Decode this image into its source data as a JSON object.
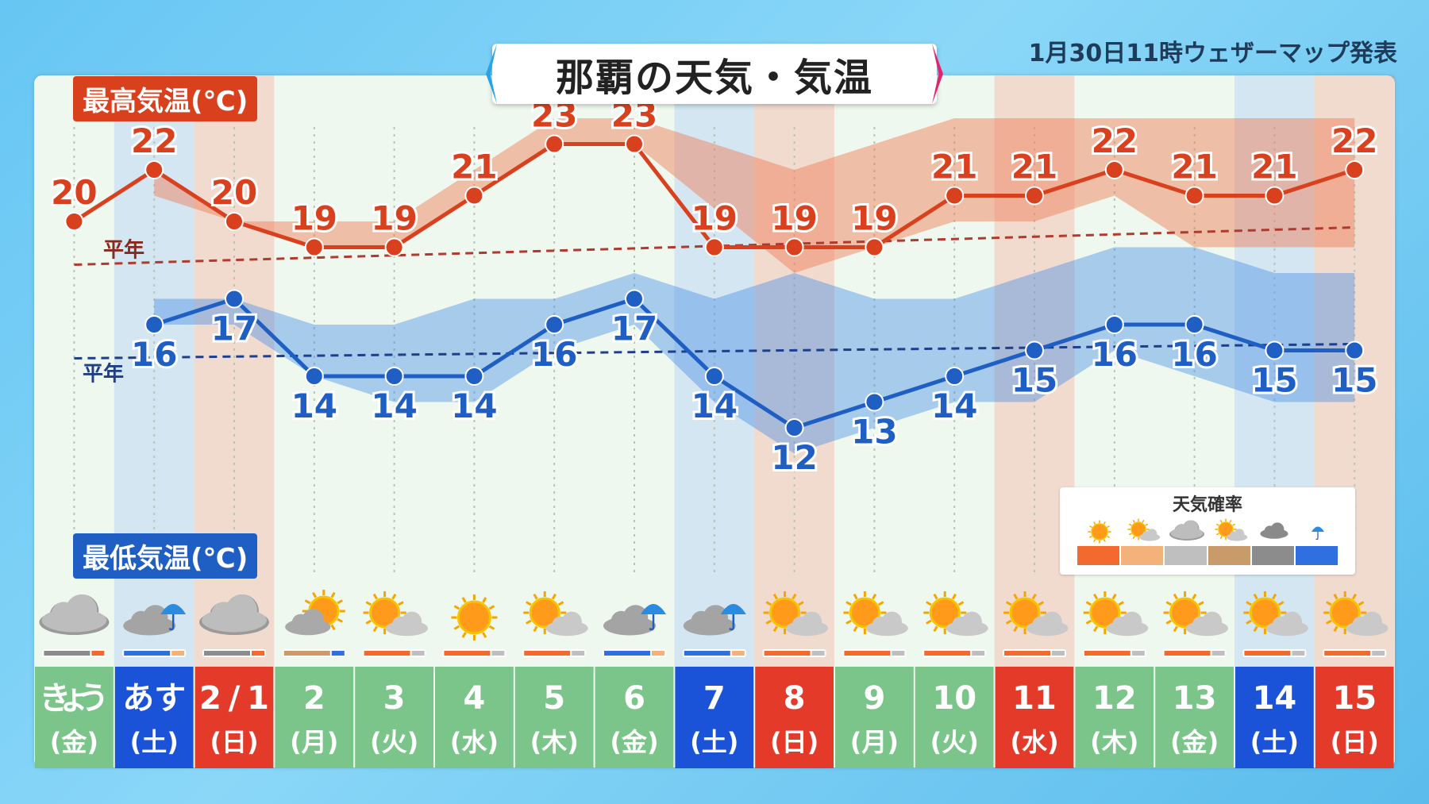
{
  "title": "那覇の天気・気温",
  "issued": "1月30日11時ウェザーマップ発表",
  "max_label": "最高気温(℃)",
  "min_label": "最低気温(℃)",
  "normal_label": "平年",
  "legend": {
    "title": "天気確率",
    "icons": [
      "sun-icon",
      "sun-cloud-icon",
      "cloud-icon",
      "sun-cloud-icon",
      "dark-cloud-icon",
      "umbrella-icon"
    ],
    "colors": [
      "#f26a2e",
      "#f3b27a",
      "#bfbfbf",
      "#c99a6a",
      "#8c8c8c",
      "#2f6fe0"
    ]
  },
  "days": [
    {
      "date": "きょう",
      "dow": "(金)",
      "type": "weekday",
      "weather": "cloud-icon"
    },
    {
      "date": "あす",
      "dow": "(土)",
      "type": "sat",
      "weather": "cloud-rain-icon"
    },
    {
      "date": "2/1",
      "dow": "(日)",
      "type": "sun",
      "weather": "cloud-icon"
    },
    {
      "date": "2",
      "dow": "(月)",
      "type": "weekday",
      "weather": "cloud-sun-icon"
    },
    {
      "date": "3",
      "dow": "(火)",
      "type": "weekday",
      "weather": "sun-cloud-icon"
    },
    {
      "date": "4",
      "dow": "(水)",
      "type": "weekday",
      "weather": "sun-icon"
    },
    {
      "date": "5",
      "dow": "(木)",
      "type": "weekday",
      "weather": "sun-cloud-icon"
    },
    {
      "date": "6",
      "dow": "(金)",
      "type": "weekday",
      "weather": "cloud-rain-icon"
    },
    {
      "date": "7",
      "dow": "(土)",
      "type": "sat",
      "weather": "cloud-rain-icon"
    },
    {
      "date": "8",
      "dow": "(日)",
      "type": "sun",
      "weather": "sun-cloud-icon"
    },
    {
      "date": "9",
      "dow": "(月)",
      "type": "weekday",
      "weather": "sun-cloud-icon"
    },
    {
      "date": "10",
      "dow": "(火)",
      "type": "weekday",
      "weather": "sun-cloud-icon"
    },
    {
      "date": "11",
      "dow": "(水)",
      "type": "holiday",
      "weather": "sun-cloud-icon"
    },
    {
      "date": "12",
      "dow": "(木)",
      "type": "weekday",
      "weather": "sun-cloud-icon"
    },
    {
      "date": "13",
      "dow": "(金)",
      "type": "weekday",
      "weather": "sun-cloud-icon"
    },
    {
      "date": "14",
      "dow": "(土)",
      "type": "sat",
      "weather": "sun-cloud-icon"
    },
    {
      "date": "15",
      "dow": "(日)",
      "type": "sun",
      "weather": "sun-cloud-icon"
    }
  ],
  "chart_data": {
    "type": "line",
    "categories": [
      "きょう",
      "あす",
      "2/1",
      "2",
      "3",
      "4",
      "5",
      "6",
      "7",
      "8",
      "9",
      "10",
      "11",
      "12",
      "13",
      "14",
      "15"
    ],
    "series": [
      {
        "name": "最高気温(℃)",
        "color": "#d9411e",
        "values": [
          20,
          22,
          20,
          19,
          19,
          21,
          23,
          23,
          19,
          19,
          19,
          21,
          21,
          22,
          21,
          21,
          22
        ],
        "range_low": [
          null,
          21,
          20,
          19,
          19,
          null,
          23,
          23,
          null,
          18,
          19,
          20,
          20,
          21,
          19,
          19,
          19
        ],
        "range_high": [
          null,
          22,
          20,
          20,
          20,
          null,
          24,
          24,
          null,
          22,
          23,
          24,
          24,
          24,
          24,
          24,
          24
        ]
      },
      {
        "name": "最低気温(℃)",
        "color": "#1f5fc4",
        "values": [
          null,
          16,
          17,
          14,
          14,
          14,
          16,
          17,
          14,
          12,
          13,
          14,
          15,
          16,
          16,
          15,
          15
        ],
        "range_low": [
          null,
          16,
          16,
          14,
          13,
          13,
          15,
          16,
          13,
          11,
          12,
          13,
          13,
          15,
          14,
          13,
          13
        ],
        "range_high": [
          null,
          17,
          17,
          16,
          16,
          17,
          17,
          18,
          17,
          18,
          17,
          17,
          18,
          19,
          19,
          18,
          18
        ]
      }
    ],
    "normal": {
      "max": 19,
      "min": 15
    },
    "ylim": [
      10,
      25
    ]
  }
}
